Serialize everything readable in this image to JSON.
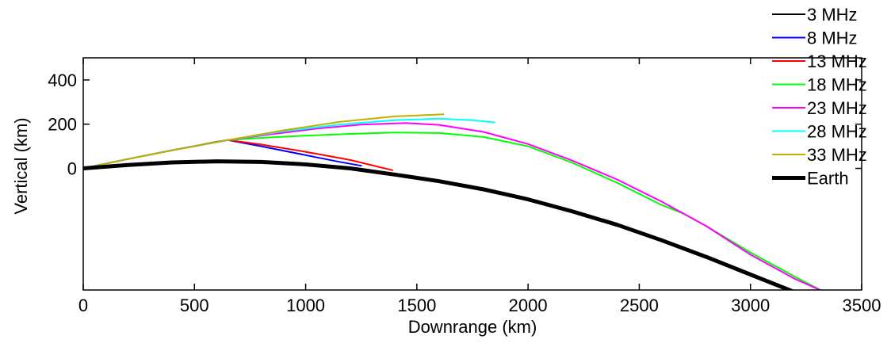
{
  "chart_data": {
    "type": "line",
    "title": "",
    "xlabel": "Downrange (km)",
    "ylabel": "Vertical (km)",
    "xlim": [
      0,
      3500
    ],
    "ylim": [
      -550,
      500
    ],
    "xticks": [
      0,
      500,
      1000,
      1500,
      2000,
      2500,
      3000,
      3500
    ],
    "yticks": [
      0,
      200,
      400
    ],
    "grid": false,
    "legend_position": "outside-top-right",
    "series": [
      {
        "name": "3 MHz",
        "color": "#000000",
        "line_width": 2,
        "x": [
          0,
          200,
          400,
          600,
          650
        ],
        "y": [
          0,
          42,
          82,
          120,
          128
        ]
      },
      {
        "name": "8 MHz",
        "color": "#0000ff",
        "line_width": 2,
        "x": [
          0,
          200,
          400,
          650,
          800,
          1000,
          1150,
          1250
        ],
        "y": [
          0,
          42,
          82,
          128,
          100,
          60,
          30,
          12
        ]
      },
      {
        "name": "13 MHz",
        "color": "#ff0000",
        "line_width": 2,
        "x": [
          0,
          200,
          400,
          650,
          800,
          1000,
          1200,
          1390
        ],
        "y": [
          0,
          42,
          82,
          128,
          108,
          75,
          38,
          -8
        ]
      },
      {
        "name": "18 MHz",
        "color": "#00ff00",
        "line_width": 2,
        "x": [
          0,
          200,
          400,
          650,
          800,
          1000,
          1200,
          1400,
          1600,
          1800,
          2000,
          2200,
          2400,
          2600,
          2700,
          2800,
          3000,
          3200,
          3330
        ],
        "y": [
          0,
          42,
          82,
          128,
          138,
          148,
          156,
          162,
          160,
          142,
          100,
          25,
          -65,
          -165,
          -205,
          -260,
          -380,
          -490,
          -558
        ]
      },
      {
        "name": "23 MHz",
        "color": "#ff00ff",
        "line_width": 2,
        "x": [
          0,
          200,
          400,
          650,
          850,
          1050,
          1250,
          1450,
          1600,
          1800,
          2000,
          2200,
          2400,
          2600,
          2800,
          3000,
          3200,
          3330
        ],
        "y": [
          0,
          42,
          82,
          128,
          155,
          180,
          198,
          205,
          197,
          165,
          110,
          35,
          -50,
          -150,
          -260,
          -390,
          -500,
          -558
        ]
      },
      {
        "name": "28 MHz",
        "color": "#00ffff",
        "line_width": 2,
        "x": [
          0,
          200,
          400,
          650,
          900,
          1150,
          1400,
          1600,
          1750,
          1850
        ],
        "y": [
          0,
          42,
          82,
          128,
          168,
          198,
          218,
          225,
          218,
          208
        ]
      },
      {
        "name": "33 MHz",
        "color": "#c0b000",
        "line_width": 2,
        "x": [
          0,
          200,
          400,
          650,
          900,
          1150,
          1400,
          1620
        ],
        "y": [
          0,
          42,
          82,
          128,
          172,
          210,
          235,
          245
        ]
      },
      {
        "name": "Earth",
        "color": "#000000",
        "line_width": 5,
        "x": [
          0,
          200,
          400,
          600,
          800,
          1000,
          1200,
          1400,
          1600,
          1800,
          2000,
          2200,
          2400,
          2600,
          2800,
          3000,
          3200,
          3330
        ],
        "y": [
          0,
          15,
          27,
          32,
          29,
          18,
          0,
          -28,
          -58,
          -95,
          -140,
          -195,
          -255,
          -325,
          -400,
          -480,
          -560,
          -558
        ]
      }
    ]
  }
}
